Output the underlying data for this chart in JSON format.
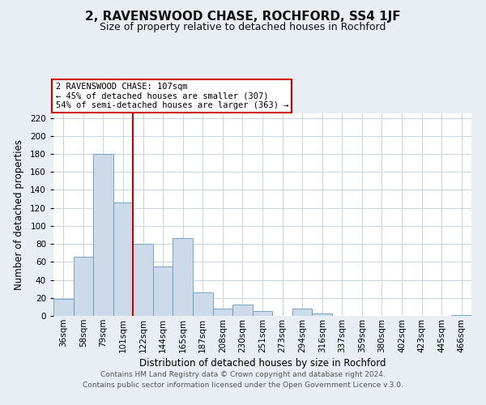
{
  "title": "2, RAVENSWOOD CHASE, ROCHFORD, SS4 1JF",
  "subtitle": "Size of property relative to detached houses in Rochford",
  "xlabel": "Distribution of detached houses by size in Rochford",
  "ylabel": "Number of detached properties",
  "bar_labels": [
    "36sqm",
    "58sqm",
    "79sqm",
    "101sqm",
    "122sqm",
    "144sqm",
    "165sqm",
    "187sqm",
    "208sqm",
    "230sqm",
    "251sqm",
    "273sqm",
    "294sqm",
    "316sqm",
    "337sqm",
    "359sqm",
    "380sqm",
    "402sqm",
    "423sqm",
    "445sqm",
    "466sqm"
  ],
  "bar_values": [
    19,
    66,
    180,
    126,
    80,
    55,
    86,
    26,
    8,
    13,
    5,
    0,
    8,
    3,
    0,
    0,
    0,
    0,
    0,
    0,
    1
  ],
  "bar_color": "#ccdaea",
  "bar_edge_color": "#6699bb",
  "ylim": [
    0,
    225
  ],
  "yticks": [
    0,
    20,
    40,
    60,
    80,
    100,
    120,
    140,
    160,
    180,
    200,
    220
  ],
  "vline_color": "#cc0000",
  "annotation_title": "2 RAVENSWOOD CHASE: 107sqm",
  "annotation_line1": "← 45% of detached houses are smaller (307)",
  "annotation_line2": "54% of semi-detached houses are larger (363) →",
  "footer1": "Contains HM Land Registry data © Crown copyright and database right 2024.",
  "footer2": "Contains public sector information licensed under the Open Government Licence v.3.0.",
  "background_color": "#e8eef4",
  "plot_bg_color": "#ffffff",
  "grid_color": "#c8d4e0",
  "title_fontsize": 11,
  "subtitle_fontsize": 9,
  "label_fontsize": 8.5,
  "tick_fontsize": 7.5,
  "footer_fontsize": 6.5
}
